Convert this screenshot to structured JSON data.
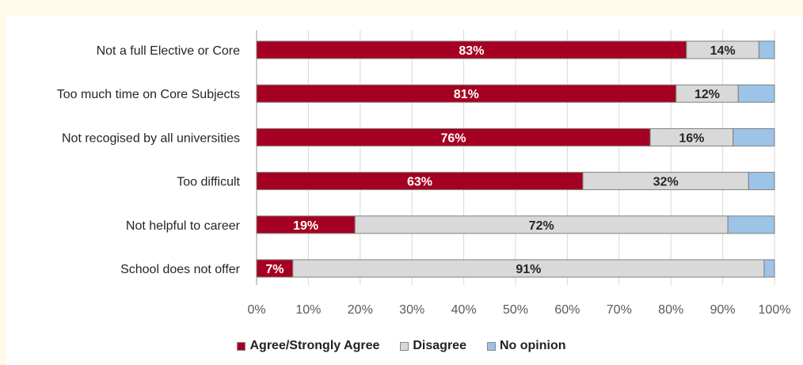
{
  "chart_data": {
    "type": "bar",
    "orientation": "horizontal",
    "stacked": true,
    "categories": [
      "Not a full Elective or Core",
      "Too much time on Core Subjects",
      "Not recogised by all universities",
      "Too difficult",
      "Not helpful to career",
      "School does not offer"
    ],
    "series": [
      {
        "name": "Agree/Strongly Agree",
        "values": [
          83,
          81,
          76,
          63,
          19,
          7
        ],
        "labels": [
          "83%",
          "81%",
          "76%",
          "63%",
          "19%",
          "7%"
        ]
      },
      {
        "name": "Disagree",
        "values": [
          14,
          12,
          16,
          32,
          72,
          91
        ],
        "labels": [
          "14%",
          "12%",
          "16%",
          "32%",
          "72%",
          "91%"
        ]
      },
      {
        "name": "No opinion",
        "values": [
          3,
          7,
          8,
          5,
          9,
          2
        ],
        "labels": [
          "",
          "",
          "",
          "",
          "",
          ""
        ]
      }
    ],
    "colors": [
      "#a50021",
      "#d9d9d9",
      "#9dc3e6"
    ],
    "xlim": [
      0,
      100
    ],
    "xticks": [
      "0%",
      "10%",
      "20%",
      "30%",
      "40%",
      "50%",
      "60%",
      "70%",
      "80%",
      "90%",
      "100%"
    ],
    "grid": true,
    "legend_position": "bottom",
    "title": "",
    "xlabel": "",
    "ylabel": ""
  }
}
